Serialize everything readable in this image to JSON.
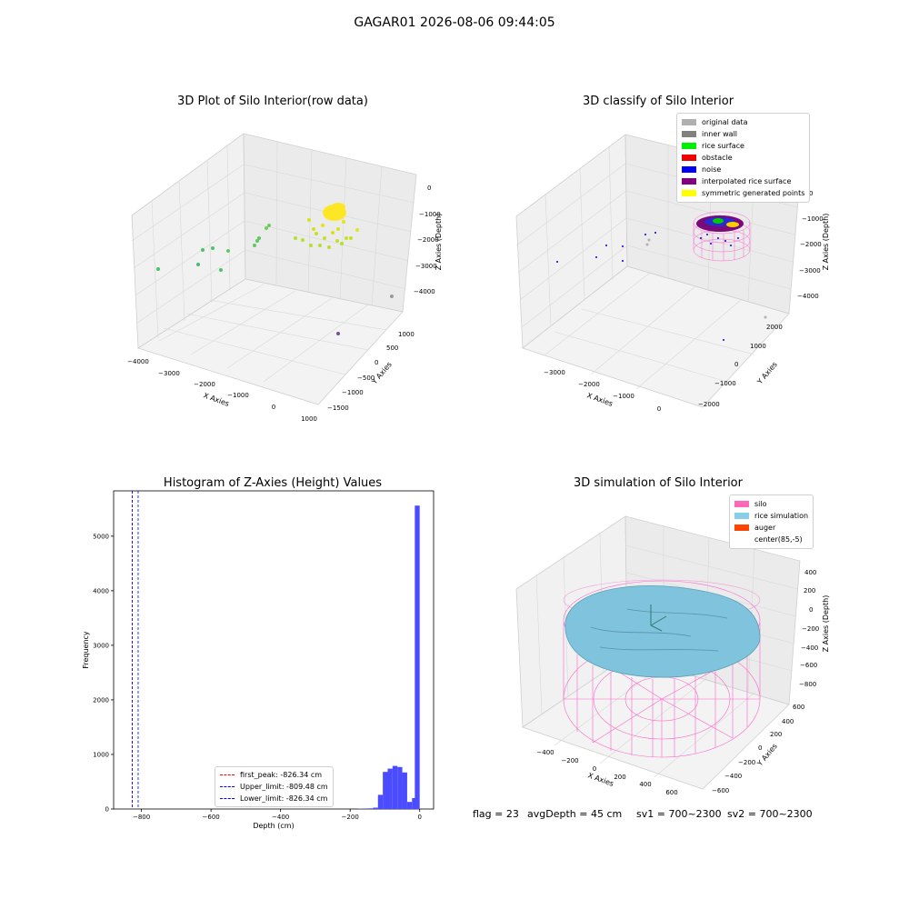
{
  "figure": {
    "title": "GAGAR01 2026-08-06 09:44:05",
    "status": {
      "flag": "flag = 23",
      "avg_depth": "avgDepth = 45 cm",
      "sv1": "sv1 = 700~2300",
      "sv2": "sv2 = 700~2300"
    }
  },
  "chart_data": [
    {
      "type": "scatter",
      "title": "3D Plot of Silo Interior(row data)",
      "xlabel": "X Axies",
      "ylabel": "Y Axies",
      "zlabel": "Z Axies (Depth)",
      "x_ticks": [
        "−4000",
        "−3000",
        "−2000",
        "−1000",
        "0",
        "1000"
      ],
      "y_ticks": [
        "1000",
        "500",
        "0",
        "−500",
        "−1000",
        "−1500"
      ],
      "z_ticks": [
        "0",
        "−1000",
        "−2000",
        "−3000",
        "−4000"
      ],
      "xlim": [
        -4000,
        1000
      ],
      "ylim": [
        -1500,
        1000
      ],
      "zlim": [
        -4200,
        0
      ],
      "colormap": [
        "#440154",
        "#3b528b",
        "#21918c",
        "#5ec962",
        "#fde725"
      ],
      "points_estimated": [
        {
          "x": -3600,
          "y": -200,
          "z": -3000
        },
        {
          "x": -3000,
          "y": -300,
          "z": -2900
        },
        {
          "x": -2800,
          "y": 200,
          "z": -2600
        },
        {
          "x": -2500,
          "y": 100,
          "z": -2500
        },
        {
          "x": -2200,
          "y": -100,
          "z": -2400
        },
        {
          "x": -1500,
          "y": 300,
          "z": -2200
        },
        {
          "x": -1200,
          "y": 200,
          "z": -2000
        },
        {
          "x": -300,
          "y": 400,
          "z": -1900
        },
        {
          "x": 100,
          "y": 500,
          "z": -1700
        },
        {
          "x": 600,
          "y": -1200,
          "z": -3800
        },
        {
          "x": 900,
          "y": 900,
          "z": -4000
        }
      ]
    },
    {
      "type": "scatter",
      "title": "3D classify of Silo Interior",
      "xlabel": "X Axies",
      "ylabel": "Y Axies",
      "zlabel": "Z Axies (Depth)",
      "x_ticks": [
        "−3000",
        "−2000",
        "−1000",
        "0"
      ],
      "y_ticks": [
        "2000",
        "1000",
        "0",
        "−1000",
        "−2000"
      ],
      "z_ticks": [
        "0",
        "−1000",
        "−2000",
        "−3000",
        "−4000"
      ],
      "legend": [
        {
          "label": "original data",
          "color": "#b0b0b0"
        },
        {
          "label": "inner wall",
          "color": "#808080"
        },
        {
          "label": "rice surface",
          "color": "#00ee00"
        },
        {
          "label": "obstacle",
          "color": "#ee0000"
        },
        {
          "label": "noise",
          "color": "#0000ee"
        },
        {
          "label": "interpolated rice surface",
          "color": "#800080"
        },
        {
          "label": "symmetric generated points",
          "color": "#ffff00"
        }
      ]
    },
    {
      "type": "bar",
      "title": "Histogram of Z-Axies (Height) Values",
      "xlabel": "Depth (cm)",
      "ylabel": "Frequency",
      "xlim": [
        -880,
        40
      ],
      "ylim": [
        0,
        5830
      ],
      "x_ticks": [
        -800,
        -600,
        -400,
        -200,
        0
      ],
      "y_ticks": [
        0,
        1000,
        2000,
        3000,
        4000,
        5000
      ],
      "bin_width": 14,
      "bins_estimated": [
        {
          "start": -176,
          "value": 8
        },
        {
          "start": -162,
          "value": 10
        },
        {
          "start": -148,
          "value": 12
        },
        {
          "start": -134,
          "value": 25
        },
        {
          "start": -120,
          "value": 260
        },
        {
          "start": -106,
          "value": 680
        },
        {
          "start": -92,
          "value": 740
        },
        {
          "start": -78,
          "value": 790
        },
        {
          "start": -64,
          "value": 770
        },
        {
          "start": -50,
          "value": 670
        },
        {
          "start": -36,
          "value": 130
        },
        {
          "start": -22,
          "value": 200
        },
        {
          "start": -14,
          "value": 5560
        }
      ],
      "bar_color": "#4b4bff",
      "vlines": [
        {
          "label": "first_peak: -826.34 cm",
          "x": -826.34,
          "color": "#ff0000"
        },
        {
          "label": "Upper_limit: -809.48 cm",
          "x": -809.48,
          "color": "#0000ff"
        },
        {
          "label": "Lower_limit: -826.34 cm",
          "x": -826.34,
          "color": "#0000ff"
        }
      ]
    },
    {
      "type": "scatter",
      "title": "3D simulation of Silo Interior",
      "xlabel": "X Axies",
      "ylabel": "Y Axies",
      "zlabel": "Z Axies (Depth)",
      "x_ticks": [
        "−400",
        "−200",
        "0",
        "200",
        "400",
        "600"
      ],
      "y_ticks": [
        "600",
        "400",
        "200",
        "0",
        "−200",
        "−400",
        "−600"
      ],
      "z_ticks": [
        "400",
        "200",
        "0",
        "−200",
        "−400",
        "−600",
        "−800"
      ],
      "legend": [
        {
          "label": "silo",
          "color": "#ff69b4"
        },
        {
          "label": "rice simulation",
          "color": "#87ceeb"
        },
        {
          "label": "auger",
          "color": "#ff4500"
        },
        {
          "label": "center(85,-5)",
          "color": ""
        }
      ]
    }
  ]
}
